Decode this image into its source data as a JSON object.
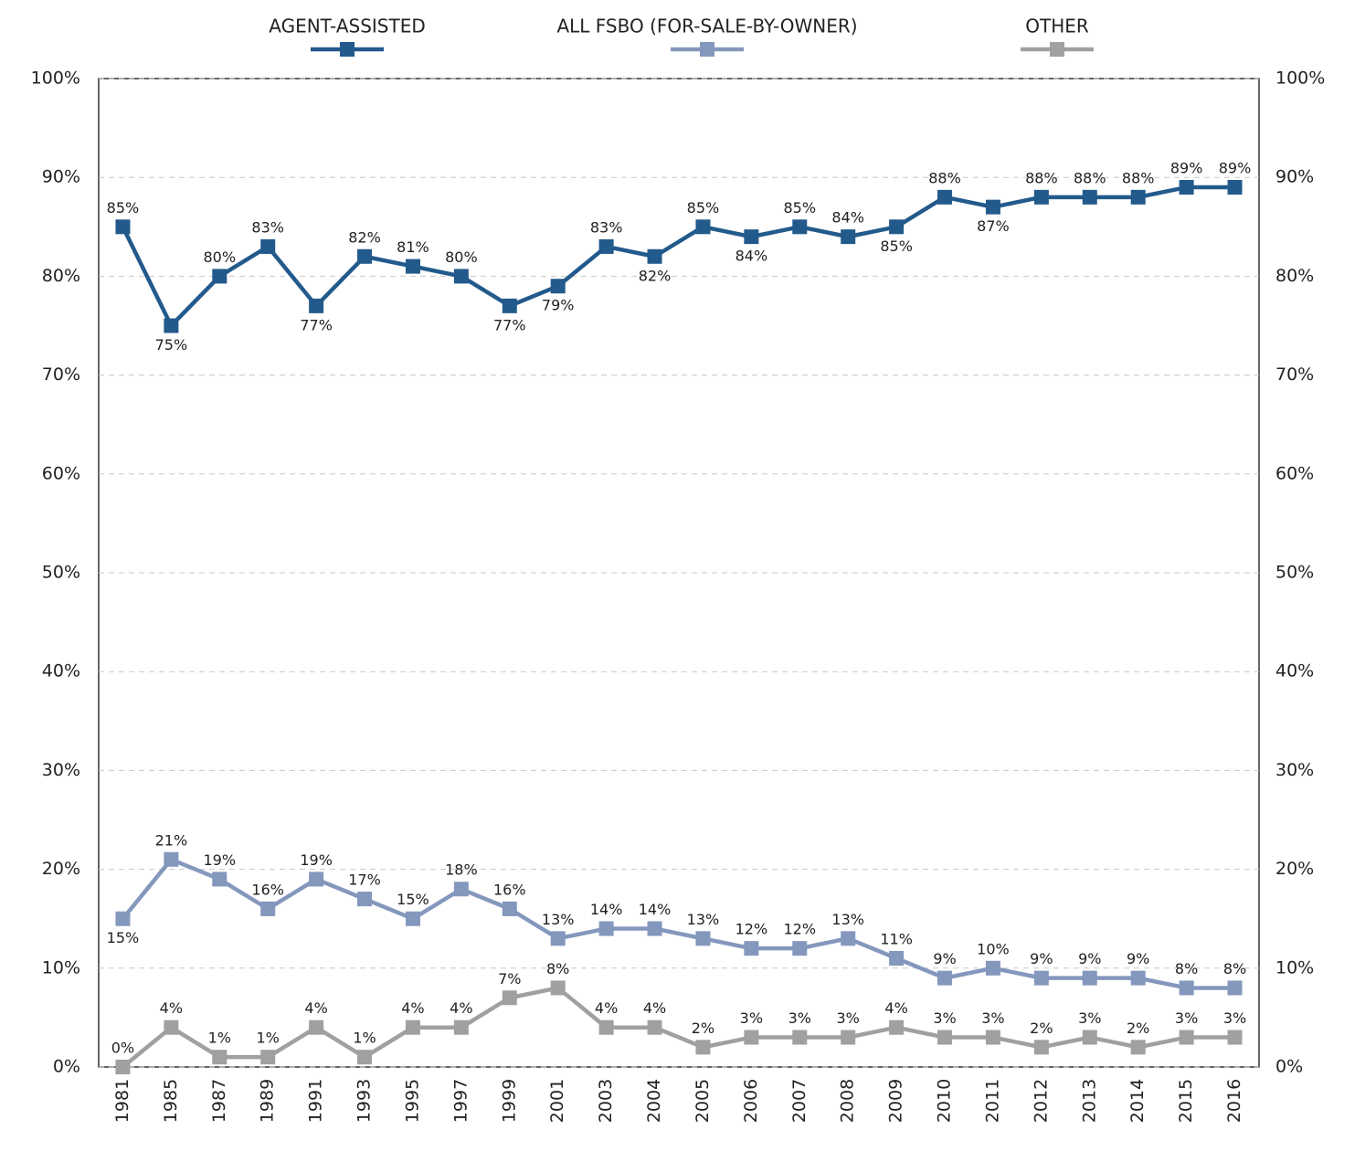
{
  "chart_data": {
    "type": "line",
    "categories": [
      "1981",
      "1985",
      "1987",
      "1989",
      "1991",
      "1993",
      "1995",
      "1997",
      "1999",
      "2001",
      "2003",
      "2004",
      "2005",
      "2006",
      "2007",
      "2008",
      "2009",
      "2010",
      "2011",
      "2012",
      "2013",
      "2014",
      "2015",
      "2016"
    ],
    "series": [
      {
        "name": "AGENT-ASSISTED",
        "color": "#235a8c",
        "values": [
          85,
          75,
          80,
          83,
          77,
          82,
          81,
          80,
          77,
          79,
          83,
          82,
          85,
          84,
          85,
          84,
          85,
          88,
          87,
          88,
          88,
          88,
          89,
          89
        ],
        "value_labels": [
          "85%",
          "75%",
          "80%",
          "83%",
          "77%",
          "82%",
          "81%",
          "80%",
          "77%",
          "79%",
          "83%",
          "82%",
          "85%",
          "84%",
          "85%",
          "84%",
          "85%",
          "88%",
          "87%",
          "88%",
          "88%",
          "88%",
          "89%",
          "89%"
        ]
      },
      {
        "name": "ALL FSBO (FOR-SALE-BY-OWNER)",
        "color": "#8497bd",
        "values": [
          15,
          21,
          19,
          16,
          19,
          17,
          15,
          18,
          16,
          13,
          14,
          14,
          13,
          12,
          12,
          13,
          11,
          9,
          10,
          9,
          9,
          9,
          8,
          8
        ],
        "value_labels": [
          "15%",
          "21%",
          "19%",
          "16%",
          "19%",
          "17%",
          "15%",
          "18%",
          "16%",
          "13%",
          "14%",
          "14%",
          "13%",
          "12%",
          "12%",
          "13%",
          "11%",
          "9%",
          "10%",
          "9%",
          "9%",
          "9%",
          "8%",
          "8%"
        ]
      },
      {
        "name": "OTHER",
        "color": "#a0a0a0",
        "values": [
          0,
          4,
          1,
          1,
          4,
          1,
          4,
          4,
          7,
          8,
          4,
          4,
          2,
          3,
          3,
          3,
          4,
          3,
          3,
          2,
          3,
          2,
          3,
          3
        ],
        "value_labels": [
          "0%",
          "4%",
          "1%",
          "1%",
          "4%",
          "1%",
          "4%",
          "4%",
          "7%",
          "8%",
          "4%",
          "4%",
          "2%",
          "3%",
          "3%",
          "3%",
          "4%",
          "3%",
          "3%",
          "2%",
          "3%",
          "2%",
          "3%",
          "3%"
        ]
      }
    ],
    "ylim": [
      0,
      100
    ],
    "yticks": [
      {
        "value": 0,
        "label": "0%"
      },
      {
        "value": 10,
        "label": "10%"
      },
      {
        "value": 20,
        "label": "20%"
      },
      {
        "value": 30,
        "label": "30%"
      },
      {
        "value": 40,
        "label": "40%"
      },
      {
        "value": 50,
        "label": "50%"
      },
      {
        "value": 60,
        "label": "60%"
      },
      {
        "value": 70,
        "label": "70%"
      },
      {
        "value": 80,
        "label": "80%"
      },
      {
        "value": 90,
        "label": "90%"
      },
      {
        "value": 100,
        "label": "100%"
      }
    ],
    "y2lim": [
      0,
      100
    ],
    "y2ticks": [
      {
        "value": 0,
        "label": "0%"
      },
      {
        "value": 10,
        "label": "10%"
      },
      {
        "value": 20,
        "label": "20%"
      },
      {
        "value": 30,
        "label": "30%"
      },
      {
        "value": 40,
        "label": "40%"
      },
      {
        "value": 50,
        "label": "50%"
      },
      {
        "value": 60,
        "label": "60%"
      },
      {
        "value": 70,
        "label": "70%"
      },
      {
        "value": 80,
        "label": "80%"
      },
      {
        "value": 90,
        "label": "90%"
      },
      {
        "value": 100,
        "label": "100%"
      }
    ],
    "grid": true
  }
}
